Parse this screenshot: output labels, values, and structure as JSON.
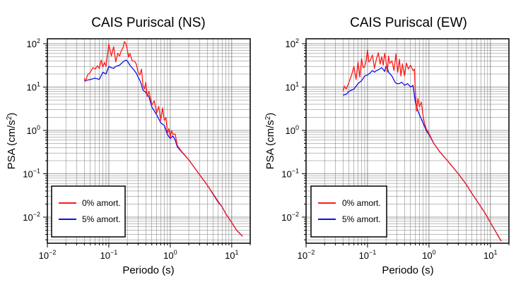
{
  "colors": {
    "red": "#ff1a1a",
    "blue": "#1010e8",
    "grid": "#7a7a7a"
  },
  "chart_data": [
    {
      "type": "line",
      "title": "CAIS Puriscal (NS)",
      "xlabel": "Periodo (s)",
      "ylabel": "PSA (cm/s²)",
      "xscale": "log",
      "yscale": "log",
      "xlim": [
        0.01,
        20
      ],
      "ylim": [
        0.0025,
        130
      ],
      "grid": true,
      "legend": "bottom-left",
      "xticks": [
        {
          "v": 0.01,
          "b": "10",
          "e": "−2"
        },
        {
          "v": 0.1,
          "b": "10",
          "e": "−1"
        },
        {
          "v": 1,
          "b": "10",
          "e": "0"
        },
        {
          "v": 10,
          "b": "10",
          "e": "1"
        }
      ],
      "yticks": [
        {
          "v": 0.01,
          "b": "10",
          "e": "−2"
        },
        {
          "v": 0.1,
          "b": "10",
          "e": "−1"
        },
        {
          "v": 1,
          "b": "10",
          "e": "0"
        },
        {
          "v": 10,
          "b": "10",
          "e": "1"
        },
        {
          "v": 100,
          "b": "10",
          "e": "2"
        }
      ],
      "series": [
        {
          "name": "0% amort.",
          "color": "red",
          "points": [
            [
              0.04,
              16
            ],
            [
              0.042,
              13.5
            ],
            [
              0.045,
              19
            ],
            [
              0.05,
              22
            ],
            [
              0.055,
              28
            ],
            [
              0.06,
              26
            ],
            [
              0.065,
              31
            ],
            [
              0.07,
              27
            ],
            [
              0.075,
              42
            ],
            [
              0.08,
              29
            ],
            [
              0.085,
              37
            ],
            [
              0.09,
              30
            ],
            [
              0.095,
              53
            ],
            [
              0.1,
              97
            ],
            [
              0.105,
              72
            ],
            [
              0.11,
              52
            ],
            [
              0.12,
              85
            ],
            [
              0.13,
              38
            ],
            [
              0.14,
              60
            ],
            [
              0.15,
              52
            ],
            [
              0.16,
              70
            ],
            [
              0.17,
              80
            ],
            [
              0.18,
              112
            ],
            [
              0.19,
              100
            ],
            [
              0.2,
              72
            ],
            [
              0.21,
              49
            ],
            [
              0.22,
              60
            ],
            [
              0.24,
              40
            ],
            [
              0.26,
              40
            ],
            [
              0.28,
              34
            ],
            [
              0.3,
              22
            ],
            [
              0.32,
              19
            ],
            [
              0.34,
              26
            ],
            [
              0.36,
              11
            ],
            [
              0.38,
              9
            ],
            [
              0.4,
              13
            ],
            [
              0.42,
              6
            ],
            [
              0.45,
              8
            ],
            [
              0.48,
              5.2
            ],
            [
              0.5,
              3.8
            ],
            [
              0.55,
              4.8
            ],
            [
              0.6,
              2.5
            ],
            [
              0.65,
              3.6
            ],
            [
              0.7,
              1.7
            ],
            [
              0.75,
              3.3
            ],
            [
              0.8,
              1.7
            ],
            [
              0.85,
              2
            ],
            [
              0.9,
              0.85
            ],
            [
              0.95,
              1.1
            ],
            [
              1,
              0.7
            ],
            [
              1.05,
              1.0
            ],
            [
              1.1,
              0.82
            ],
            [
              1.2,
              0.82
            ],
            [
              1.3,
              0.45
            ],
            [
              1.5,
              0.34
            ],
            [
              2,
              0.21
            ],
            [
              3,
              0.095
            ],
            [
              4,
              0.055
            ],
            [
              5,
              0.033
            ],
            [
              6,
              0.022
            ],
            [
              7,
              0.017
            ],
            [
              8,
              0.012
            ],
            [
              10,
              0.0075
            ],
            [
              12,
              0.005
            ],
            [
              13,
              0.0045
            ],
            [
              15,
              0.0036
            ]
          ]
        },
        {
          "name": "5% amort.",
          "color": "blue",
          "points": [
            [
              0.04,
              14
            ],
            [
              0.045,
              14.5
            ],
            [
              0.05,
              15
            ],
            [
              0.06,
              16
            ],
            [
              0.07,
              15
            ],
            [
              0.08,
              22
            ],
            [
              0.09,
              20
            ],
            [
              0.1,
              30
            ],
            [
              0.11,
              28
            ],
            [
              0.12,
              27
            ],
            [
              0.13,
              30
            ],
            [
              0.15,
              32
            ],
            [
              0.17,
              38
            ],
            [
              0.19,
              42
            ],
            [
              0.2,
              40
            ],
            [
              0.22,
              32
            ],
            [
              0.25,
              26
            ],
            [
              0.28,
              21
            ],
            [
              0.3,
              17
            ],
            [
              0.33,
              13
            ],
            [
              0.36,
              8.5
            ],
            [
              0.4,
              7.5
            ],
            [
              0.45,
              6
            ],
            [
              0.5,
              3.5
            ],
            [
              0.55,
              2.8
            ],
            [
              0.6,
              2.3
            ],
            [
              0.7,
              1.5
            ],
            [
              0.8,
              1.3
            ],
            [
              0.9,
              0.8
            ],
            [
              1,
              0.65
            ],
            [
              1.1,
              0.75
            ],
            [
              1.2,
              0.6
            ],
            [
              1.3,
              0.42
            ],
            [
              1.5,
              0.33
            ],
            [
              2,
              0.21
            ],
            [
              3,
              0.095
            ],
            [
              4,
              0.055
            ],
            [
              5,
              0.034
            ],
            [
              6,
              0.023
            ],
            [
              7,
              0.017
            ],
            [
              8,
              0.012
            ],
            [
              10,
              0.0075
            ],
            [
              12,
              0.005
            ],
            [
              15,
              0.0036
            ]
          ]
        }
      ]
    },
    {
      "type": "line",
      "title": "CAIS Puriscal (EW)",
      "xlabel": "Periodo (s)",
      "ylabel": "PSA (cm/s²)",
      "xscale": "log",
      "yscale": "log",
      "xlim": [
        0.01,
        20
      ],
      "ylim": [
        0.0025,
        130
      ],
      "grid": true,
      "legend": "bottom-left",
      "xticks": [
        {
          "v": 0.01,
          "b": "10",
          "e": "−2"
        },
        {
          "v": 0.1,
          "b": "10",
          "e": "−1"
        },
        {
          "v": 1,
          "b": "10",
          "e": "0"
        },
        {
          "v": 10,
          "b": "10",
          "e": "1"
        }
      ],
      "yticks": [
        {
          "v": 0.01,
          "b": "10",
          "e": "−2"
        },
        {
          "v": 0.1,
          "b": "10",
          "e": "−1"
        },
        {
          "v": 1,
          "b": "10",
          "e": "0"
        },
        {
          "v": 10,
          "b": "10",
          "e": "1"
        },
        {
          "v": 100,
          "b": "10",
          "e": "2"
        }
      ],
      "series": [
        {
          "name": "0% amort.",
          "color": "red",
          "points": [
            [
              0.04,
              8
            ],
            [
              0.042,
              10.5
            ],
            [
              0.045,
              9
            ],
            [
              0.05,
              13
            ],
            [
              0.055,
              19
            ],
            [
              0.06,
              30
            ],
            [
              0.065,
              15
            ],
            [
              0.07,
              38
            ],
            [
              0.075,
              17
            ],
            [
              0.08,
              45
            ],
            [
              0.085,
              28
            ],
            [
              0.09,
              30
            ],
            [
              0.095,
              40
            ],
            [
              0.1,
              72
            ],
            [
              0.105,
              38
            ],
            [
              0.11,
              40
            ],
            [
              0.12,
              55
            ],
            [
              0.13,
              27
            ],
            [
              0.14,
              45
            ],
            [
              0.15,
              62
            ],
            [
              0.16,
              34
            ],
            [
              0.17,
              50
            ],
            [
              0.18,
              32
            ],
            [
              0.19,
              60
            ],
            [
              0.2,
              40
            ],
            [
              0.21,
              22
            ],
            [
              0.22,
              52
            ],
            [
              0.23,
              35
            ],
            [
              0.25,
              40
            ],
            [
              0.27,
              24
            ],
            [
              0.29,
              58
            ],
            [
              0.31,
              22
            ],
            [
              0.33,
              44
            ],
            [
              0.35,
              18
            ],
            [
              0.37,
              34
            ],
            [
              0.4,
              18
            ],
            [
              0.43,
              36
            ],
            [
              0.46,
              26
            ],
            [
              0.5,
              32
            ],
            [
              0.55,
              24
            ],
            [
              0.58,
              26
            ],
            [
              0.6,
              8
            ],
            [
              0.63,
              2.8
            ],
            [
              0.66,
              5.5
            ],
            [
              0.7,
              3.5
            ],
            [
              0.75,
              4.5
            ],
            [
              0.8,
              2.2
            ],
            [
              0.85,
              1.4
            ],
            [
              0.9,
              1.1
            ],
            [
              1,
              0.85
            ],
            [
              1.2,
              0.5
            ],
            [
              1.5,
              0.32
            ],
            [
              2,
              0.2
            ],
            [
              3,
              0.1
            ],
            [
              4,
              0.058
            ],
            [
              5,
              0.035
            ],
            [
              6,
              0.024
            ],
            [
              8,
              0.013
            ],
            [
              10,
              0.0075
            ],
            [
              12,
              0.0048
            ],
            [
              13,
              0.0039
            ],
            [
              15,
              0.0028
            ]
          ]
        },
        {
          "name": "5% amort.",
          "color": "blue",
          "points": [
            [
              0.04,
              6.5
            ],
            [
              0.045,
              6.8
            ],
            [
              0.05,
              8
            ],
            [
              0.06,
              9
            ],
            [
              0.07,
              12
            ],
            [
              0.08,
              14
            ],
            [
              0.09,
              18
            ],
            [
              0.1,
              19
            ],
            [
              0.11,
              21
            ],
            [
              0.12,
              24
            ],
            [
              0.13,
              22
            ],
            [
              0.14,
              24
            ],
            [
              0.15,
              25
            ],
            [
              0.17,
              28
            ],
            [
              0.19,
              23
            ],
            [
              0.2,
              30
            ],
            [
              0.21,
              28
            ],
            [
              0.22,
              22
            ],
            [
              0.25,
              18
            ],
            [
              0.28,
              13
            ],
            [
              0.3,
              12
            ],
            [
              0.33,
              12
            ],
            [
              0.36,
              13
            ],
            [
              0.4,
              11
            ],
            [
              0.45,
              12
            ],
            [
              0.5,
              10
            ],
            [
              0.55,
              11
            ],
            [
              0.6,
              4.5
            ],
            [
              0.65,
              3
            ],
            [
              0.7,
              2.3
            ],
            [
              0.8,
              1.5
            ],
            [
              0.9,
              1
            ],
            [
              1,
              0.8
            ],
            [
              1.2,
              0.5
            ],
            [
              1.5,
              0.32
            ],
            [
              2,
              0.2
            ],
            [
              3,
              0.1
            ],
            [
              4,
              0.058
            ],
            [
              5,
              0.035
            ],
            [
              6,
              0.024
            ],
            [
              8,
              0.013
            ],
            [
              10,
              0.0075
            ],
            [
              12,
              0.0048
            ],
            [
              15,
              0.0028
            ]
          ]
        }
      ]
    }
  ]
}
